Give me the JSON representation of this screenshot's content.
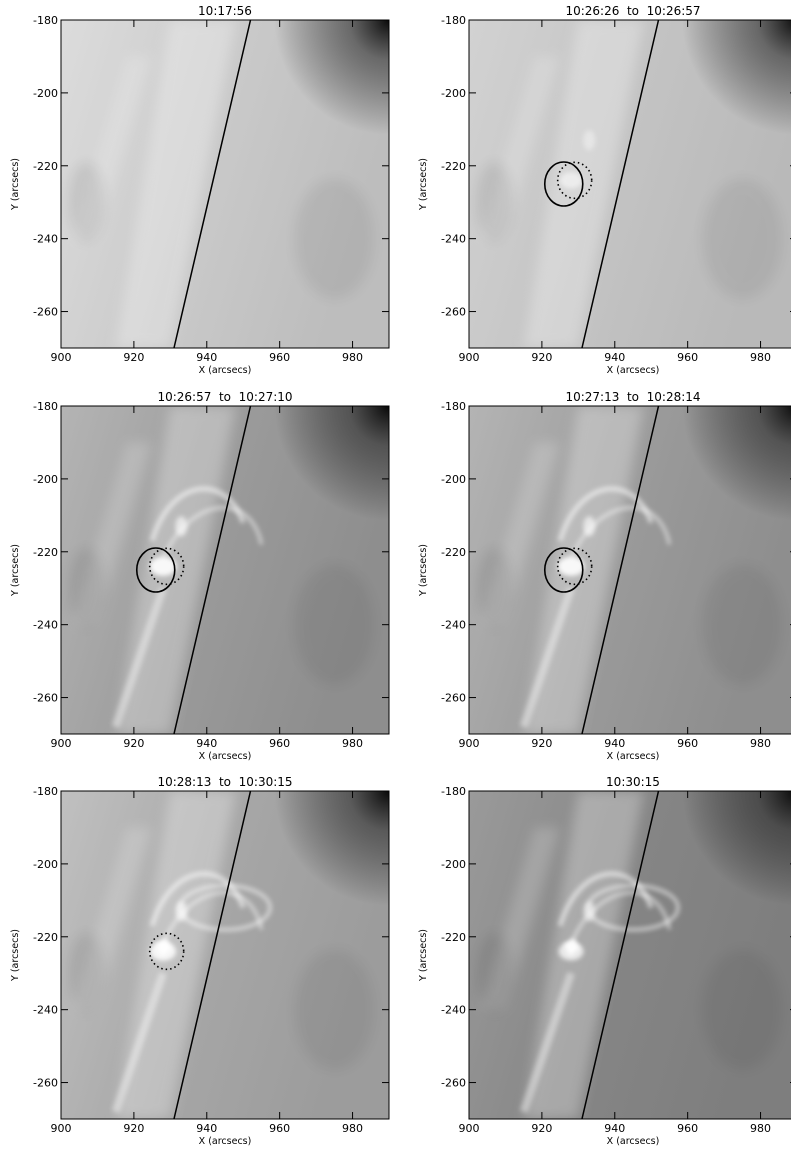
{
  "figure": {
    "panels": [
      {
        "title": "10:17:56",
        "style": "pre",
        "solid_contour": false,
        "dotted_contour": false
      },
      {
        "title": "10:26:26  to  10:26:57",
        "style": "early",
        "solid_contour": true,
        "dotted_contour": true
      },
      {
        "title": "10:26:57  to  10:27:10",
        "style": "mid",
        "solid_contour": true,
        "dotted_contour": true
      },
      {
        "title": "10:27:13  to  10:28:14",
        "style": "mid",
        "solid_contour": true,
        "dotted_contour": true
      },
      {
        "title": "10:28:13  to  10:30:15",
        "style": "late",
        "solid_contour": false,
        "dotted_contour": true
      },
      {
        "title": "10:30:15",
        "style": "post",
        "solid_contour": false,
        "dotted_contour": false
      }
    ],
    "x_axis": {
      "label": "X (arcsecs)",
      "range": [
        900,
        990
      ],
      "ticks": [
        900,
        920,
        940,
        960,
        980
      ],
      "tick_labels": [
        "900",
        "920",
        "940",
        "960",
        "980"
      ]
    },
    "y_axis": {
      "label": "Y (arcsecs)",
      "range": [
        -270,
        -180
      ],
      "ticks": [
        -180,
        -200,
        -220,
        -240,
        -260
      ],
      "tick_labels": [
        "-180",
        "-200",
        "-220",
        "-240",
        "-260"
      ]
    },
    "limb_line": {
      "x_start": 931,
      "y_start": -270,
      "x_end": 952,
      "y_end": -180
    },
    "solid_contour_center": {
      "x": 926,
      "y": -225
    },
    "dotted_contour_center": {
      "x": 929,
      "y": -224
    },
    "colors": {
      "line": "#000000",
      "background": "#ffffff"
    }
  }
}
